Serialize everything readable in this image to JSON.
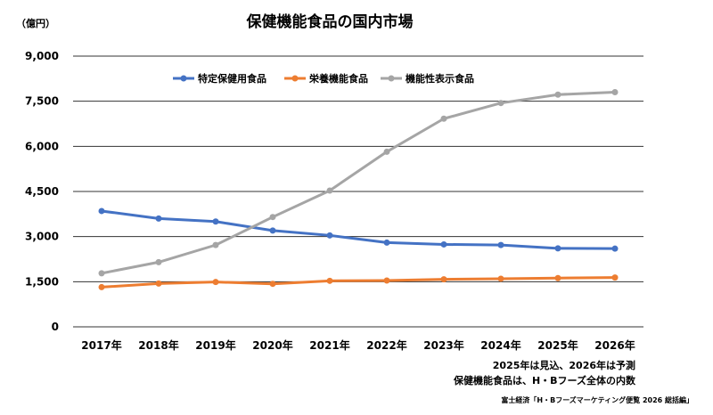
{
  "chart_data": {
    "type": "line",
    "title": "保健機能食品の国内市場",
    "unit_label": "（億円）",
    "categories": [
      "2017年",
      "2018年",
      "2019年",
      "2020年",
      "2021年",
      "2022年",
      "2023年",
      "2024年",
      "2025年",
      "2026年"
    ],
    "ylim": [
      0,
      9000
    ],
    "yticks": [
      0,
      1500,
      3000,
      4500,
      6000,
      7500,
      9000
    ],
    "ytick_labels": [
      "0",
      "1,500",
      "3,000",
      "4,500",
      "6,000",
      "7,500",
      "9,000"
    ],
    "grid": true,
    "legend_position": "top",
    "series": [
      {
        "name": "特定保健用食品",
        "color": "#4472c4",
        "values": [
          3850,
          3600,
          3500,
          3200,
          3040,
          2800,
          2740,
          2720,
          2610,
          2600
        ]
      },
      {
        "name": "栄養機能食品",
        "color": "#ed7d31",
        "values": [
          1320,
          1440,
          1490,
          1430,
          1530,
          1540,
          1580,
          1600,
          1620,
          1640
        ]
      },
      {
        "name": "機能性表示食品",
        "color": "#a5a5a5",
        "values": [
          1780,
          2150,
          2720,
          3650,
          4530,
          5820,
          6920,
          7440,
          7720,
          7800
        ]
      }
    ],
    "notes": [
      "2025年は見込、2026年は予測",
      "保健機能食品は、H・Bフーズ全体の内数"
    ],
    "source": "富士経済「H・Bフーズマーケティング便覧 2026 総括編」"
  }
}
